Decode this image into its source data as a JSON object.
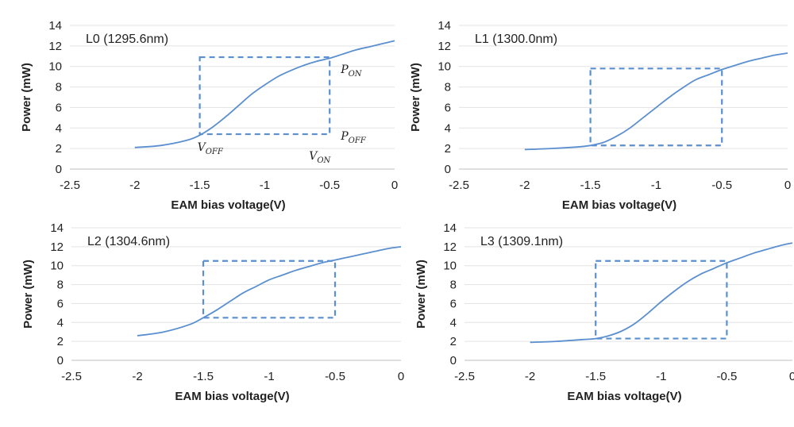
{
  "chart_data": [
    {
      "type": "line",
      "title": "L0 (1295.6nm)",
      "xlabel": "EAM bias voltage(V)",
      "ylabel": "Power (mW)",
      "xlim": [
        -2.5,
        0
      ],
      "ylim": [
        0,
        14
      ],
      "x_ticks": [
        "-2.5",
        "-2",
        "-1.5",
        "-1",
        "-0.5",
        "0"
      ],
      "y_ticks": [
        "0",
        "2",
        "4",
        "6",
        "8",
        "10",
        "12",
        "14"
      ],
      "grid": "horizontal",
      "line_color": "#5b8fcf",
      "series": [
        {
          "x": [
            -2.0,
            -1.8,
            -1.6,
            -1.5,
            -1.4,
            -1.3,
            -1.2,
            -1.1,
            -1.0,
            -0.9,
            -0.8,
            -0.7,
            -0.6,
            -0.5,
            -0.4,
            -0.3,
            -0.2,
            -0.1,
            0.0
          ],
          "y": [
            2.1,
            2.3,
            2.8,
            3.3,
            4.1,
            5.1,
            6.2,
            7.3,
            8.2,
            9.0,
            9.6,
            10.1,
            10.5,
            10.8,
            11.2,
            11.6,
            11.9,
            12.2,
            12.5
          ]
        }
      ],
      "box": {
        "x_off": -1.5,
        "x_on": -0.5,
        "p_off": 3.4,
        "p_on": 10.9,
        "style": "dashed"
      },
      "annotations": [
        {
          "text": "P",
          "sub": "ON",
          "at": "upper right of box"
        },
        {
          "text": "P",
          "sub": "OFF",
          "at": "lower right of box"
        },
        {
          "text": "V",
          "sub": "OFF",
          "at": "below box left corner"
        },
        {
          "text": "V",
          "sub": "ON",
          "at": "below box right corner"
        }
      ]
    },
    {
      "type": "line",
      "title": "L1 (1300.0nm)",
      "xlabel": "EAM bias voltage(V)",
      "ylabel": "Power (mW)",
      "xlim": [
        -2.5,
        0
      ],
      "ylim": [
        0,
        14
      ],
      "x_ticks": [
        "-2.5",
        "-2",
        "-1.5",
        "-1",
        "-0.5",
        "0"
      ],
      "y_ticks": [
        "0",
        "2",
        "4",
        "6",
        "8",
        "10",
        "12",
        "14"
      ],
      "grid": "horizontal",
      "line_color": "#5b8fcf",
      "series": [
        {
          "x": [
            -2.0,
            -1.8,
            -1.6,
            -1.5,
            -1.4,
            -1.3,
            -1.2,
            -1.1,
            -1.0,
            -0.9,
            -0.8,
            -0.7,
            -0.6,
            -0.5,
            -0.4,
            -0.3,
            -0.2,
            -0.1,
            0.0
          ],
          "y": [
            1.9,
            2.0,
            2.15,
            2.3,
            2.6,
            3.2,
            4.0,
            5.0,
            6.0,
            7.0,
            7.9,
            8.7,
            9.2,
            9.7,
            10.1,
            10.5,
            10.8,
            11.1,
            11.3
          ]
        }
      ],
      "box": {
        "x_off": -1.5,
        "x_on": -0.5,
        "p_off": 2.3,
        "p_on": 9.8,
        "style": "dashed"
      }
    },
    {
      "type": "line",
      "title": "L2 (1304.6nm)",
      "xlabel": "EAM bias voltage(V)",
      "ylabel": "Power (mW)",
      "xlim": [
        -2.5,
        0
      ],
      "ylim": [
        0,
        14
      ],
      "x_ticks": [
        "-2.5",
        "-2",
        "-1.5",
        "-1",
        "-0.5",
        "0"
      ],
      "y_ticks": [
        "0",
        "2",
        "4",
        "6",
        "8",
        "10",
        "12",
        "14"
      ],
      "grid": "horizontal",
      "line_color": "#5b8fcf",
      "series": [
        {
          "x": [
            -2.0,
            -1.8,
            -1.6,
            -1.5,
            -1.4,
            -1.3,
            -1.2,
            -1.1,
            -1.0,
            -0.9,
            -0.8,
            -0.7,
            -0.6,
            -0.5,
            -0.4,
            -0.3,
            -0.2,
            -0.1,
            0.0
          ],
          "y": [
            2.6,
            3.0,
            3.8,
            4.5,
            5.3,
            6.2,
            7.1,
            7.8,
            8.5,
            9.0,
            9.5,
            9.9,
            10.3,
            10.6,
            10.9,
            11.2,
            11.5,
            11.8,
            12.0
          ]
        }
      ],
      "box": {
        "x_off": -1.5,
        "x_on": -0.5,
        "p_off": 4.5,
        "p_on": 10.5,
        "style": "dashed"
      }
    },
    {
      "type": "line",
      "title": "L3 (1309.1nm)",
      "xlabel": "EAM bias voltage(V)",
      "ylabel": "Power (mW)",
      "xlim": [
        -2.5,
        0
      ],
      "ylim": [
        0,
        14
      ],
      "x_ticks": [
        "-2.5",
        "-2",
        "-1.5",
        "-1",
        "-0.5",
        "0"
      ],
      "y_ticks": [
        "0",
        "2",
        "4",
        "6",
        "8",
        "10",
        "12",
        "14"
      ],
      "grid": "horizontal",
      "line_color": "#5b8fcf",
      "series": [
        {
          "x": [
            -2.0,
            -1.8,
            -1.6,
            -1.5,
            -1.4,
            -1.3,
            -1.2,
            -1.1,
            -1.0,
            -0.9,
            -0.8,
            -0.7,
            -0.6,
            -0.5,
            -0.4,
            -0.3,
            -0.2,
            -0.1,
            0.0
          ],
          "y": [
            1.9,
            2.0,
            2.2,
            2.3,
            2.6,
            3.1,
            3.9,
            5.0,
            6.2,
            7.3,
            8.3,
            9.1,
            9.7,
            10.3,
            10.8,
            11.3,
            11.7,
            12.1,
            12.4
          ]
        }
      ],
      "box": {
        "x_off": -1.5,
        "x_on": -0.5,
        "p_off": 2.3,
        "p_on": 10.5,
        "style": "dashed"
      }
    }
  ]
}
